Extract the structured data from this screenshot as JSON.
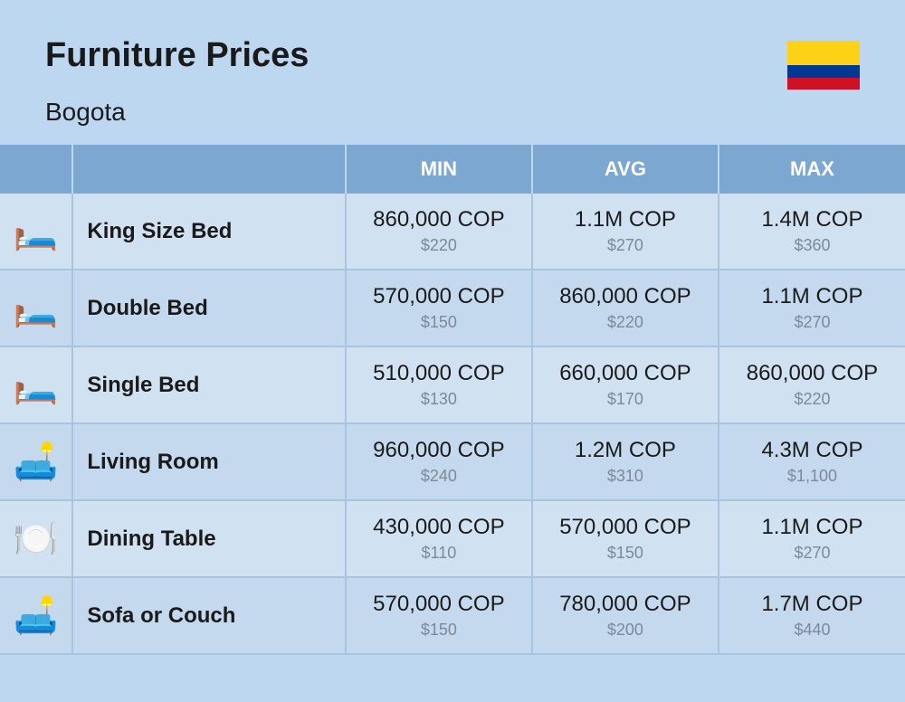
{
  "header": {
    "title": "Furniture Prices",
    "subtitle": "Bogota"
  },
  "flag": {
    "top_color": "#fcd116",
    "middle_color": "#003893",
    "bottom_color": "#ce1126"
  },
  "columns": {
    "min": "MIN",
    "avg": "AVG",
    "max": "MAX"
  },
  "rows": [
    {
      "icon": "🛏️",
      "name": "King Size Bed",
      "min_main": "860,000 COP",
      "min_sub": "$220",
      "avg_main": "1.1M COP",
      "avg_sub": "$270",
      "max_main": "1.4M COP",
      "max_sub": "$360"
    },
    {
      "icon": "🛏️",
      "name": "Double Bed",
      "min_main": "570,000 COP",
      "min_sub": "$150",
      "avg_main": "860,000 COP",
      "avg_sub": "$220",
      "max_main": "1.1M COP",
      "max_sub": "$270"
    },
    {
      "icon": "🛏️",
      "name": "Single Bed",
      "min_main": "510,000 COP",
      "min_sub": "$130",
      "avg_main": "660,000 COP",
      "avg_sub": "$170",
      "max_main": "860,000 COP",
      "max_sub": "$220"
    },
    {
      "icon": "🛋️",
      "name": "Living Room",
      "min_main": "960,000 COP",
      "min_sub": "$240",
      "avg_main": "1.2M COP",
      "avg_sub": "$310",
      "max_main": "4.3M COP",
      "max_sub": "$1,100"
    },
    {
      "icon": "🍽️",
      "name": "Dining Table",
      "min_main": "430,000 COP",
      "min_sub": "$110",
      "avg_main": "570,000 COP",
      "avg_sub": "$150",
      "max_main": "1.1M COP",
      "max_sub": "$270"
    },
    {
      "icon": "🛋️",
      "name": "Sofa or Couch",
      "min_main": "570,000 COP",
      "min_sub": "$150",
      "avg_main": "780,000 COP",
      "avg_sub": "$200",
      "max_main": "1.7M COP",
      "max_sub": "$440"
    }
  ],
  "colors": {
    "page_bg": "#bdd7f0",
    "header_row_bg": "#7ba7d0",
    "header_text": "#ffffff",
    "row_odd_bg": "#d0e1f2",
    "row_even_bg": "#c4d9ed",
    "border": "#a8c5e0",
    "text_main": "#1a1a1a",
    "text_sub": "#7a8a9a"
  }
}
